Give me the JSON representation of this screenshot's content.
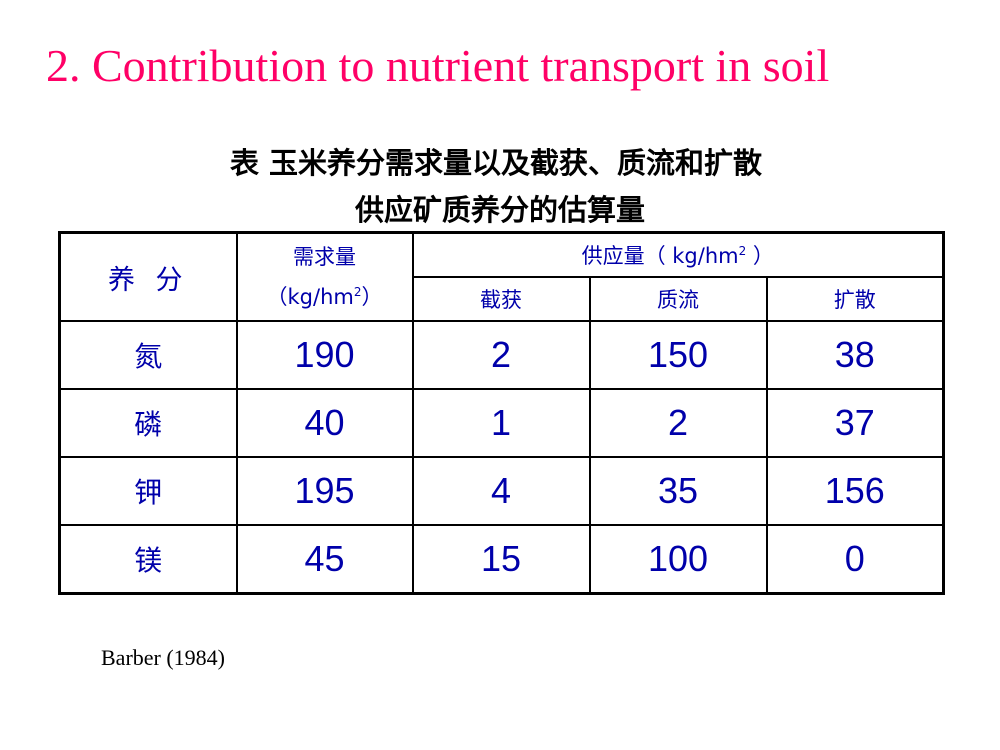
{
  "title": "2. Contribution to nutrient transport in soil",
  "colors": {
    "title": "#ff0066",
    "table_text": "#0000aa"
  },
  "caption": {
    "line1": "表  玉米养分需求量以及截获、质流和扩散",
    "line2": "供应矿质养分的估算量"
  },
  "table": {
    "header": {
      "nutrient": "养 分",
      "demand_label": "需求量",
      "demand_unit_prefix": "（kg/hm",
      "demand_unit_sup": "2",
      "demand_unit_suffix": "）",
      "supply_label": "供应量（ kg/hm",
      "supply_unit_sup": "2",
      "supply_suffix": " ）",
      "interception": "截获",
      "mass_flow": "质流",
      "diffusion": "扩散"
    },
    "rows": [
      {
        "nutrient": "氮",
        "demand": "190",
        "interception": "2",
        "mass_flow": "150",
        "diffusion": "38"
      },
      {
        "nutrient": "磷",
        "demand": "40",
        "interception": "1",
        "mass_flow": "2",
        "diffusion": "37"
      },
      {
        "nutrient": "钾",
        "demand": "195",
        "interception": "4",
        "mass_flow": "35",
        "diffusion": "156"
      },
      {
        "nutrient": "镁",
        "demand": "45",
        "interception": "15",
        "mass_flow": "100",
        "diffusion": "0"
      }
    ]
  },
  "source": "Barber (1984)"
}
